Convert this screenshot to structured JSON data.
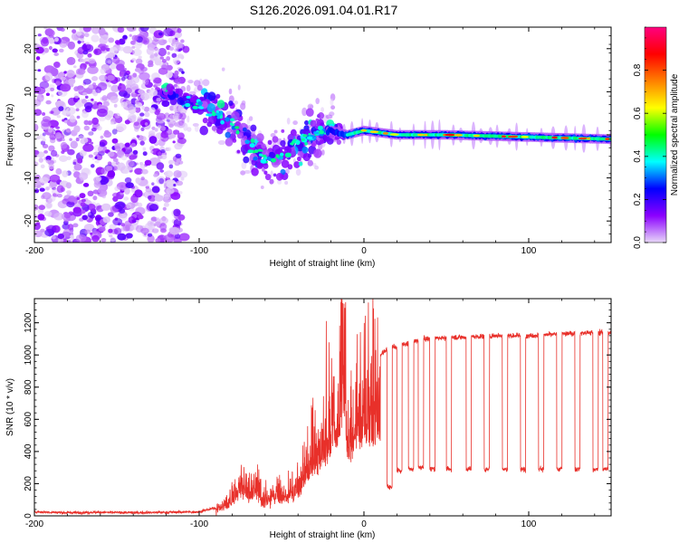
{
  "title": "S126.2026.091.04.01.R17",
  "chart_data": [
    {
      "type": "heatmap",
      "panel": "spectrogram",
      "xlabel": "Height of straight line (km)",
      "ylabel": "Frequency (Hz)",
      "xlim": [
        -200,
        150
      ],
      "ylim": [
        -25,
        25
      ],
      "xticks": [
        -200,
        -100,
        0,
        100
      ],
      "xtick_labels": [
        "-200",
        "-100",
        "0",
        "100"
      ],
      "yticks": [
        -20,
        -10,
        0,
        10,
        20
      ],
      "ytick_labels": [
        "-20",
        "-10",
        "0",
        "10",
        "20"
      ],
      "colorbar": {
        "label": "Normalized spectral amplitude",
        "range": [
          0,
          1
        ],
        "ticks": [
          0.0,
          0.2,
          0.4,
          0.6,
          0.8
        ],
        "tick_labels": [
          "0.0",
          "0.2",
          "0.4",
          "0.6",
          "0.8"
        ],
        "colors": [
          "#e8d8f8",
          "#8b00ff",
          "#0000ff",
          "#00ffff",
          "#00ff00",
          "#ffff00",
          "#ff8000",
          "#ff0000",
          "#ff0080"
        ]
      },
      "ridge": [
        {
          "x": -120,
          "f": 10
        },
        {
          "x": -110,
          "f": 8
        },
        {
          "x": -100,
          "f": 7
        },
        {
          "x": -90,
          "f": 5
        },
        {
          "x": -80,
          "f": 3
        },
        {
          "x": -70,
          "f": -2
        },
        {
          "x": -60,
          "f": -6
        },
        {
          "x": -50,
          "f": -4
        },
        {
          "x": -40,
          "f": -2
        },
        {
          "x": -30,
          "f": 0
        },
        {
          "x": -20,
          "f": 1
        },
        {
          "x": -10,
          "f": 0
        },
        {
          "x": 0,
          "f": 1
        },
        {
          "x": 20,
          "f": 0
        },
        {
          "x": 50,
          "f": 0
        },
        {
          "x": 100,
          "f": -0.5
        },
        {
          "x": 150,
          "f": -1
        }
      ]
    },
    {
      "type": "line",
      "panel": "snr",
      "xlabel": "Height of straight line (km)",
      "ylabel": "SNR (10 * v/v)",
      "xlim": [
        -200,
        150
      ],
      "ylim": [
        0,
        1350
      ],
      "xticks": [
        -200,
        -100,
        0,
        100
      ],
      "xtick_labels": [
        "-200",
        "-100",
        "0",
        "100"
      ],
      "yticks": [
        0,
        200,
        400,
        600,
        800,
        1000,
        1200
      ],
      "ytick_labels": [
        "0",
        "200",
        "400",
        "600",
        "800",
        "1000",
        "1200"
      ],
      "color": "#e8302a",
      "series": [
        {
          "name": "SNR",
          "x": [
            -200,
            -180,
            -160,
            -140,
            -120,
            -100,
            -90,
            -80,
            -75,
            -70,
            -65,
            -60,
            -55,
            -50,
            -45,
            -40,
            -35,
            -30,
            -25,
            -20,
            -15,
            -12,
            -10,
            -5,
            0,
            5,
            10,
            15,
            20,
            25,
            30,
            35,
            40,
            50,
            60,
            80,
            100,
            120,
            140,
            150
          ],
          "y": [
            25,
            20,
            22,
            20,
            22,
            25,
            50,
            150,
            280,
            200,
            250,
            120,
            220,
            180,
            200,
            250,
            450,
            500,
            650,
            800,
            900,
            1350,
            700,
            850,
            900,
            950,
            1000,
            1050,
            1050,
            1070,
            1080,
            1100,
            1100,
            1110,
            1110,
            1120,
            1120,
            1130,
            1140,
            1140
          ]
        }
      ],
      "dropouts": [
        {
          "x": 14,
          "y": 180
        },
        {
          "x": 20,
          "y": 280
        },
        {
          "x": 27,
          "y": 290
        },
        {
          "x": 33,
          "y": 300
        },
        {
          "x": 40,
          "y": 290
        },
        {
          "x": 50,
          "y": 290
        },
        {
          "x": 62,
          "y": 290
        },
        {
          "x": 73,
          "y": 290
        },
        {
          "x": 84,
          "y": 290
        },
        {
          "x": 95,
          "y": 290
        },
        {
          "x": 106,
          "y": 290
        },
        {
          "x": 117,
          "y": 290
        },
        {
          "x": 128,
          "y": 290
        },
        {
          "x": 139,
          "y": 290
        },
        {
          "x": 145,
          "y": 290
        }
      ]
    }
  ]
}
